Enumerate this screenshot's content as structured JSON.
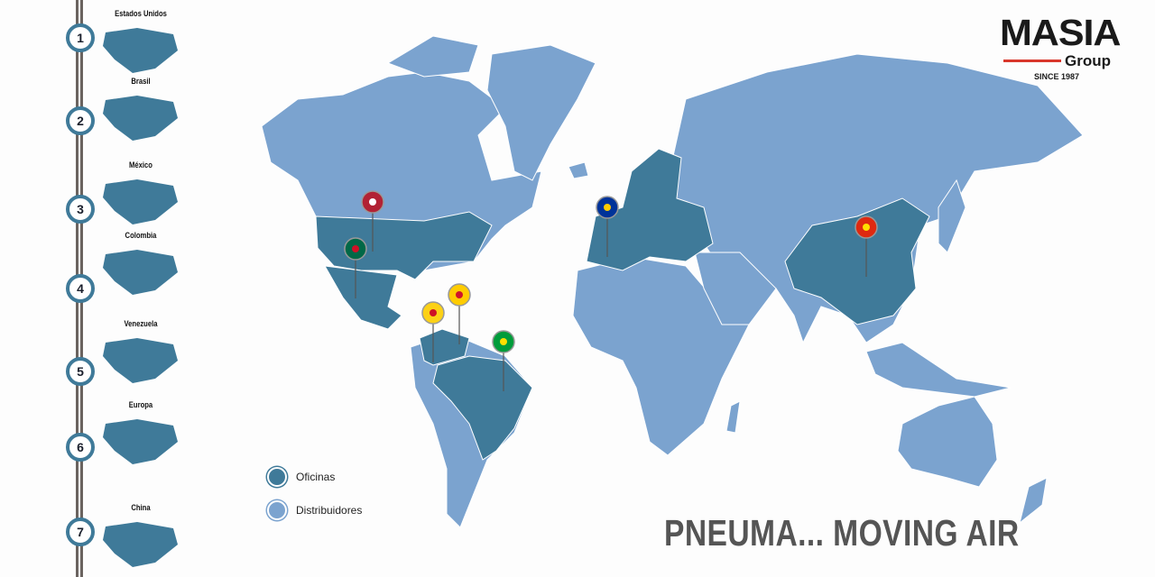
{
  "colors": {
    "oficinas": "#3f7a99",
    "distribuidores": "#7ba3cf",
    "accent": "#d9372c"
  },
  "sidebar": {
    "items": [
      {
        "number": "1",
        "label": "Estados Unidos"
      },
      {
        "number": "2",
        "label": "Brasil"
      },
      {
        "number": "3",
        "label": "México"
      },
      {
        "number": "4",
        "label": "Colombia"
      },
      {
        "number": "5",
        "label": "Venezuela"
      },
      {
        "number": "6",
        "label": "Europa"
      },
      {
        "number": "7",
        "label": "China"
      }
    ]
  },
  "logo": {
    "name": "MASIA",
    "group": "Group",
    "since": "SINCE 1987"
  },
  "legend": [
    {
      "label": "Oficinas",
      "color": "#3f7a99"
    },
    {
      "label": "Distribuidores",
      "color": "#7ba3cf"
    }
  ],
  "pins": [
    "us-flag",
    "mexico-flag",
    "colombia-flag",
    "venezuela-flag",
    "brazil-flag",
    "eu-flag",
    "china-flag"
  ],
  "tagline": "PNEUMA... MOVING AIR"
}
